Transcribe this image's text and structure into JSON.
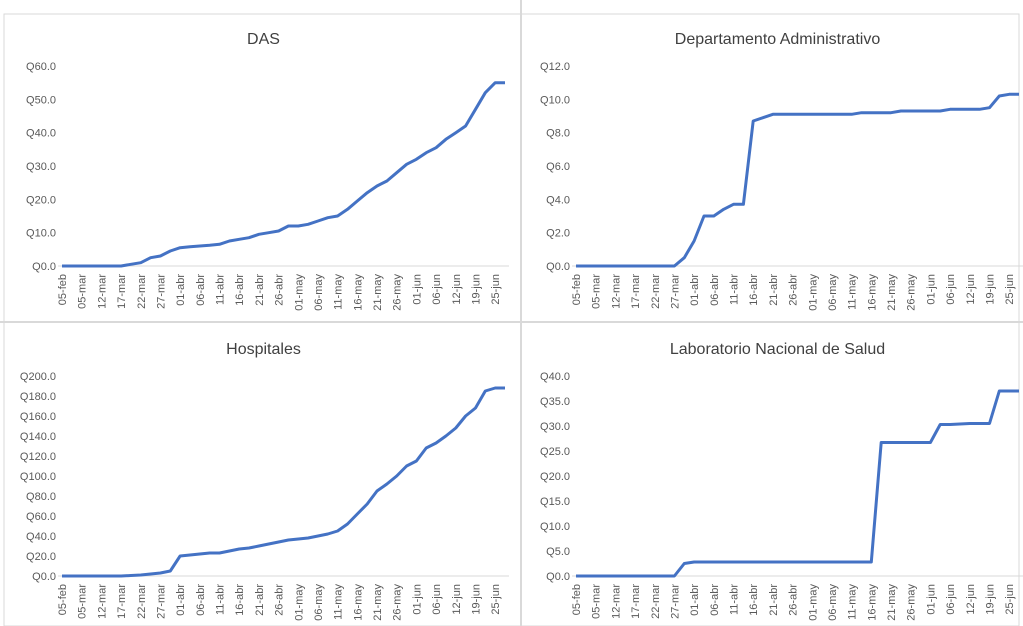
{
  "chart_data": [
    {
      "type": "line",
      "title": "DAS",
      "categories": [
        "05-feb",
        null,
        "05-mar",
        null,
        "12-mar",
        null,
        "17-mar",
        null,
        "22-mar",
        null,
        "27-mar",
        null,
        "01-abr",
        null,
        "06-abr",
        null,
        "11-abr",
        null,
        "16-abr",
        null,
        "21-abr",
        null,
        "26-abr",
        null,
        "01-may",
        null,
        "06-may",
        null,
        "11-may",
        null,
        "16-may",
        null,
        "21-may",
        null,
        "26-may",
        null,
        "01-jun",
        null,
        "06-jun",
        null,
        "12-jun",
        null,
        "19-jun",
        null,
        "25-jun",
        null
      ],
      "series": [
        {
          "name": "DAS",
          "color": "#4472c4",
          "values": [
            0,
            0,
            0,
            0,
            0,
            0,
            0,
            0.5,
            1,
            2.5,
            3,
            4.5,
            5.5,
            5.8,
            6,
            6.2,
            6.5,
            7.5,
            8,
            8.5,
            9.5,
            10,
            10.5,
            12,
            12,
            12.5,
            13.5,
            14.5,
            15,
            17,
            19.5,
            22,
            24,
            25.5,
            28,
            30.5,
            32,
            34,
            35.5,
            38,
            40,
            42,
            47,
            52,
            55,
            55
          ]
        }
      ],
      "ylim": [
        0,
        60
      ],
      "yticks": [
        {
          "value": 0,
          "label": "Q0.0"
        },
        {
          "value": 10,
          "label": "Q10.0"
        },
        {
          "value": 20,
          "label": "Q20.0"
        },
        {
          "value": 30,
          "label": "Q30.0"
        },
        {
          "value": 40,
          "label": "Q40.0"
        },
        {
          "value": 50,
          "label": "Q50.0"
        },
        {
          "value": 60,
          "label": "Q60.0"
        }
      ],
      "grid": false
    },
    {
      "type": "line",
      "title": "Departamento Administrativo",
      "categories": [
        "05-feb",
        null,
        "05-mar",
        null,
        "12-mar",
        null,
        "17-mar",
        null,
        "22-mar",
        null,
        "27-mar",
        null,
        "01-abr",
        null,
        "06-abr",
        null,
        "11-abr",
        null,
        "16-abr",
        null,
        "21-abr",
        null,
        "26-abr",
        null,
        "01-may",
        null,
        "06-may",
        null,
        "11-may",
        null,
        "16-may",
        null,
        "21-may",
        null,
        "26-may",
        null,
        "01-jun",
        null,
        "06-jun",
        null,
        "12-jun",
        null,
        "19-jun",
        null,
        "25-jun",
        null
      ],
      "series": [
        {
          "name": "Departamento Administrativo",
          "color": "#4472c4",
          "values": [
            0,
            0,
            0,
            0,
            0,
            0,
            0,
            0,
            0,
            0,
            0,
            0.5,
            1.5,
            3,
            3,
            3.4,
            3.7,
            3.7,
            8.7,
            8.9,
            9.1,
            9.1,
            9.1,
            9.1,
            9.1,
            9.1,
            9.1,
            9.1,
            9.1,
            9.2,
            9.2,
            9.2,
            9.2,
            9.3,
            9.3,
            9.3,
            9.3,
            9.3,
            9.4,
            9.4,
            9.4,
            9.4,
            9.5,
            10.2,
            10.3,
            10.3
          ]
        }
      ],
      "ylim": [
        0,
        12
      ],
      "yticks": [
        {
          "value": 0,
          "label": "Q0.0"
        },
        {
          "value": 2,
          "label": "Q2.0"
        },
        {
          "value": 4,
          "label": "Q4.0"
        },
        {
          "value": 6,
          "label": "Q6.0"
        },
        {
          "value": 8,
          "label": "Q8.0"
        },
        {
          "value": 10,
          "label": "Q10.0"
        },
        {
          "value": 12,
          "label": "Q12.0"
        }
      ],
      "grid": false
    },
    {
      "type": "line",
      "title": "Hospitales",
      "categories": [
        "05-feb",
        null,
        "05-mar",
        null,
        "12-mar",
        null,
        "17-mar",
        null,
        "22-mar",
        null,
        "27-mar",
        null,
        "01-abr",
        null,
        "06-abr",
        null,
        "11-abr",
        null,
        "16-abr",
        null,
        "21-abr",
        null,
        "26-abr",
        null,
        "01-may",
        null,
        "06-may",
        null,
        "11-may",
        null,
        "16-may",
        null,
        "21-may",
        null,
        "26-may",
        null,
        "01-jun",
        null,
        "06-jun",
        null,
        "12-jun",
        null,
        "19-jun",
        null,
        "25-jun",
        null
      ],
      "series": [
        {
          "name": "Hospitales",
          "color": "#4472c4",
          "values": [
            0,
            0,
            0,
            0,
            0,
            0,
            0,
            0.5,
            1,
            2,
            3,
            5,
            20,
            21,
            22,
            23,
            23,
            25,
            27,
            28,
            30,
            32,
            34,
            36,
            37,
            38,
            40,
            42,
            45,
            52,
            62,
            72,
            85,
            92,
            100,
            110,
            115,
            128,
            133,
            140,
            148,
            160,
            168,
            185,
            188,
            188
          ]
        }
      ],
      "ylim": [
        0,
        200
      ],
      "yticks": [
        {
          "value": 0,
          "label": "Q0.0"
        },
        {
          "value": 20,
          "label": "Q20.0"
        },
        {
          "value": 40,
          "label": "Q40.0"
        },
        {
          "value": 60,
          "label": "Q60.0"
        },
        {
          "value": 80,
          "label": "Q80.0"
        },
        {
          "value": 100,
          "label": "Q100.0"
        },
        {
          "value": 120,
          "label": "Q120.0"
        },
        {
          "value": 140,
          "label": "Q140.0"
        },
        {
          "value": 160,
          "label": "Q160.0"
        },
        {
          "value": 180,
          "label": "Q180.0"
        },
        {
          "value": 200,
          "label": "Q200.0"
        }
      ],
      "grid": false
    },
    {
      "type": "line",
      "title": "Laboratorio Nacional de Salud",
      "categories": [
        "05-feb",
        null,
        "05-mar",
        null,
        "12-mar",
        null,
        "17-mar",
        null,
        "22-mar",
        null,
        "27-mar",
        null,
        "01-abr",
        null,
        "06-abr",
        null,
        "11-abr",
        null,
        "16-abr",
        null,
        "21-abr",
        null,
        "26-abr",
        null,
        "01-may",
        null,
        "06-may",
        null,
        "11-may",
        null,
        "16-may",
        null,
        "21-may",
        null,
        "26-may",
        null,
        "01-jun",
        null,
        "06-jun",
        null,
        "12-jun",
        null,
        "19-jun",
        null,
        "25-jun",
        null
      ],
      "series": [
        {
          "name": "Laboratorio Nacional de Salud",
          "color": "#4472c4",
          "values": [
            0,
            0,
            0,
            0,
            0,
            0,
            0,
            0,
            0,
            0,
            0,
            2.5,
            2.8,
            2.8,
            2.8,
            2.8,
            2.8,
            2.8,
            2.8,
            2.8,
            2.8,
            2.8,
            2.8,
            2.8,
            2.8,
            2.8,
            2.8,
            2.8,
            2.8,
            2.8,
            2.8,
            26.7,
            26.7,
            26.7,
            26.7,
            26.7,
            26.7,
            30.3,
            30.3,
            30.4,
            30.5,
            30.5,
            30.5,
            37,
            37,
            37
          ]
        }
      ],
      "ylim": [
        0,
        40
      ],
      "yticks": [
        {
          "value": 0,
          "label": "Q0.0"
        },
        {
          "value": 5,
          "label": "Q5.0"
        },
        {
          "value": 10,
          "label": "Q10.0"
        },
        {
          "value": 15,
          "label": "Q15.0"
        },
        {
          "value": 20,
          "label": "Q20.0"
        },
        {
          "value": 25,
          "label": "Q25.0"
        },
        {
          "value": 30,
          "label": "Q30.0"
        },
        {
          "value": 35,
          "label": "Q35.0"
        },
        {
          "value": 40,
          "label": "Q40.0"
        }
      ],
      "grid": false
    }
  ]
}
